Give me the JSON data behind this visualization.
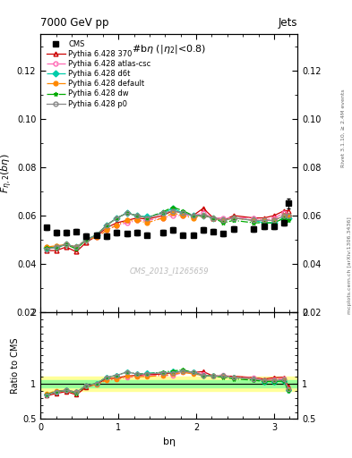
{
  "title_top": "7000 GeV pp",
  "title_right": "Jets",
  "plot_title": "#bη (|η₂|<0.8)",
  "xlabel": "bη",
  "ylabel_main": "F_{η,2}(bη)",
  "ylabel_ratio": "Ratio to CMS",
  "watermark": "CMS_2013_I1265659",
  "right_label": "Rivet 3.1.10, ≥ 2.4M events",
  "right_label2": "mcplots.cern.ch [arXiv:1306.3436]",
  "xlim": [
    0,
    3.3
  ],
  "ylim_main": [
    0.02,
    0.135
  ],
  "ylim_ratio": [
    0.5,
    2.0
  ],
  "yticks_main": [
    0.02,
    0.04,
    0.06,
    0.08,
    0.1,
    0.12
  ],
  "yticks_ratio": [
    0.5,
    1.0,
    2.0
  ],
  "cms_x": [
    0.08,
    0.2,
    0.33,
    0.46,
    0.59,
    0.72,
    0.85,
    0.98,
    1.11,
    1.24,
    1.37,
    1.57,
    1.7,
    1.83,
    1.96,
    2.09,
    2.22,
    2.35,
    2.48,
    2.74,
    2.87,
    3.0,
    3.13,
    3.18
  ],
  "cms_y": [
    0.055,
    0.053,
    0.053,
    0.0535,
    0.0515,
    0.052,
    0.0515,
    0.053,
    0.0525,
    0.053,
    0.052,
    0.053,
    0.054,
    0.052,
    0.052,
    0.054,
    0.0535,
    0.0525,
    0.0545,
    0.0545,
    0.0555,
    0.0555,
    0.057,
    0.065
  ],
  "cms_yerr": [
    0.001,
    0.001,
    0.001,
    0.001,
    0.001,
    0.001,
    0.001,
    0.001,
    0.001,
    0.001,
    0.001,
    0.001,
    0.001,
    0.001,
    0.001,
    0.001,
    0.001,
    0.001,
    0.001,
    0.001,
    0.001,
    0.001,
    0.001,
    0.002
  ],
  "lines": [
    {
      "label": "Pythia 6.428 370",
      "color": "#cc0000",
      "linestyle": "-",
      "marker": "^",
      "markerfacecolor": "none",
      "x": [
        0.08,
        0.2,
        0.33,
        0.46,
        0.59,
        0.72,
        0.85,
        0.98,
        1.11,
        1.24,
        1.37,
        1.57,
        1.7,
        1.83,
        1.96,
        2.09,
        2.22,
        2.35,
        2.48,
        2.74,
        2.87,
        3.0,
        3.13,
        3.18
      ],
      "y": [
        0.0455,
        0.0455,
        0.047,
        0.045,
        0.049,
        0.0515,
        0.055,
        0.057,
        0.058,
        0.059,
        0.0585,
        0.06,
        0.062,
        0.061,
        0.06,
        0.063,
        0.059,
        0.058,
        0.06,
        0.059,
        0.059,
        0.06,
        0.062,
        0.062
      ]
    },
    {
      "label": "Pythia 6.428 atlas-csc",
      "color": "#ff69b4",
      "linestyle": "-.",
      "marker": "o",
      "markerfacecolor": "none",
      "x": [
        0.08,
        0.2,
        0.33,
        0.46,
        0.59,
        0.72,
        0.85,
        0.98,
        1.11,
        1.24,
        1.37,
        1.57,
        1.7,
        1.83,
        1.96,
        2.09,
        2.22,
        2.35,
        2.48,
        2.74,
        2.87,
        3.0,
        3.13,
        3.18
      ],
      "y": [
        0.0465,
        0.047,
        0.048,
        0.047,
        0.05,
        0.051,
        0.054,
        0.056,
        0.057,
        0.058,
        0.058,
        0.059,
        0.06,
        0.06,
        0.06,
        0.061,
        0.059,
        0.059,
        0.059,
        0.059,
        0.058,
        0.059,
        0.061,
        0.06
      ]
    },
    {
      "label": "Pythia 6.428 d6t",
      "color": "#00ccaa",
      "linestyle": "-.",
      "marker": "D",
      "markerfacecolor": "#00ccaa",
      "x": [
        0.08,
        0.2,
        0.33,
        0.46,
        0.59,
        0.72,
        0.85,
        0.98,
        1.11,
        1.24,
        1.37,
        1.57,
        1.7,
        1.83,
        1.96,
        2.09,
        2.22,
        2.35,
        2.48,
        2.74,
        2.87,
        3.0,
        3.13,
        3.18
      ],
      "y": [
        0.0465,
        0.047,
        0.048,
        0.047,
        0.05,
        0.052,
        0.056,
        0.059,
        0.061,
        0.06,
        0.0595,
        0.061,
        0.063,
        0.061,
        0.06,
        0.06,
        0.059,
        0.058,
        0.059,
        0.058,
        0.057,
        0.057,
        0.059,
        0.059
      ]
    },
    {
      "label": "Pythia 6.428 default",
      "color": "#ff8800",
      "linestyle": "-.",
      "marker": "o",
      "markerfacecolor": "#ff8800",
      "x": [
        0.08,
        0.2,
        0.33,
        0.46,
        0.59,
        0.72,
        0.85,
        0.98,
        1.11,
        1.24,
        1.37,
        1.57,
        1.7,
        1.83,
        1.96,
        2.09,
        2.22,
        2.35,
        2.48,
        2.74,
        2.87,
        3.0,
        3.13,
        3.18
      ],
      "y": [
        0.047,
        0.0475,
        0.048,
        0.047,
        0.05,
        0.051,
        0.054,
        0.056,
        0.058,
        0.058,
        0.057,
        0.059,
        0.061,
        0.06,
        0.059,
        0.06,
        0.059,
        0.058,
        0.059,
        0.058,
        0.058,
        0.058,
        0.06,
        0.06
      ]
    },
    {
      "label": "Pythia 6.428 dw",
      "color": "#00aa00",
      "linestyle": "-.",
      "marker": "*",
      "markerfacecolor": "#00aa00",
      "x": [
        0.08,
        0.2,
        0.33,
        0.46,
        0.59,
        0.72,
        0.85,
        0.98,
        1.11,
        1.24,
        1.37,
        1.57,
        1.7,
        1.83,
        1.96,
        2.09,
        2.22,
        2.35,
        2.48,
        2.74,
        2.87,
        3.0,
        3.13,
        3.18
      ],
      "y": [
        0.0465,
        0.0468,
        0.048,
        0.0462,
        0.05,
        0.052,
        0.056,
        0.059,
        0.061,
        0.06,
        0.059,
        0.0615,
        0.0635,
        0.062,
        0.06,
        0.06,
        0.059,
        0.057,
        0.058,
        0.057,
        0.057,
        0.057,
        0.059,
        0.058
      ]
    },
    {
      "label": "Pythia 6.428 p0",
      "color": "#888888",
      "linestyle": "-",
      "marker": "o",
      "markerfacecolor": "none",
      "x": [
        0.08,
        0.2,
        0.33,
        0.46,
        0.59,
        0.72,
        0.85,
        0.98,
        1.11,
        1.24,
        1.37,
        1.57,
        1.7,
        1.83,
        1.96,
        2.09,
        2.22,
        2.35,
        2.48,
        2.74,
        2.87,
        3.0,
        3.13,
        3.18
      ],
      "y": [
        0.046,
        0.047,
        0.048,
        0.047,
        0.05,
        0.052,
        0.056,
        0.059,
        0.061,
        0.06,
        0.059,
        0.061,
        0.062,
        0.061,
        0.06,
        0.06,
        0.059,
        0.058,
        0.059,
        0.058,
        0.058,
        0.058,
        0.06,
        0.06
      ]
    }
  ],
  "ratio_band_green": 0.05,
  "ratio_band_yellow": 0.1,
  "bg_color": "#ffffff"
}
